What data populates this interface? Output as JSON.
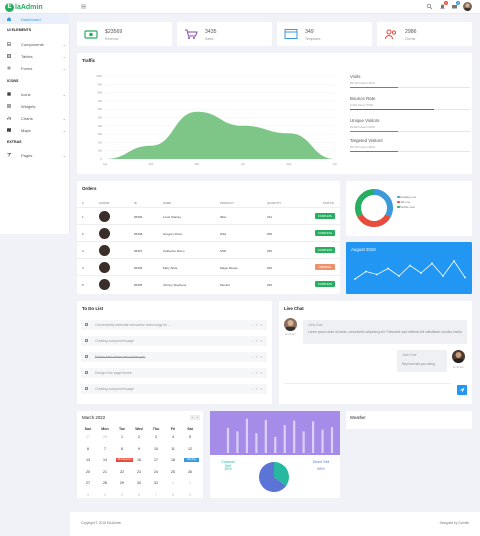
{
  "brand": {
    "icon_letter": "E",
    "name": "laAdmin",
    "color": "#27ae60"
  },
  "topbar": {
    "badges": [
      "4",
      "3",
      "5"
    ]
  },
  "sidebar": {
    "dashboard": "Dashboard",
    "ui_heading": "UI ELEMENTS",
    "components": "Components",
    "tables": "Tables",
    "forms": "Forms",
    "icons_heading": "ICONS",
    "icons": "Icons",
    "widgets": "Widgets",
    "charts": "Charts",
    "maps": "Maps",
    "extras_heading": "EXTRAS",
    "pages": "Pages"
  },
  "stats": [
    {
      "value": "$23569",
      "label": "Revenue",
      "color": "#27ae60",
      "icon": "money-icon"
    },
    {
      "value": "3435",
      "label": "Sales",
      "color": "#8e44ad",
      "icon": "cart-icon"
    },
    {
      "value": "349",
      "label": "Templates",
      "color": "#3b9ad9",
      "icon": "browser-icon"
    },
    {
      "value": "2986",
      "label": "Clients",
      "color": "#e74c3c",
      "icon": "users-icon"
    }
  ],
  "traffic": {
    "title": "Traffic",
    "chart_data": {
      "type": "area",
      "x": [
        "Jan",
        "Feb",
        "Mar",
        "Apr",
        "May",
        "Jun"
      ],
      "values": [
        0,
        160,
        570,
        400,
        310,
        0
      ],
      "yticks": [
        "1000",
        "900",
        "800",
        "700",
        "600",
        "500",
        "400",
        "300",
        "200",
        "100",
        "0"
      ],
      "ylim": [
        0,
        1000
      ],
      "color": "#7dc687"
    },
    "stats": [
      {
        "title": "Visits",
        "sub": "29,703 Users (40%)",
        "pct": 40,
        "color": "#27ae60"
      },
      {
        "title": "Bounce Rate",
        "sub": "3,223 Users (70%)",
        "pct": 70,
        "color": "#8e44ad"
      },
      {
        "title": "Unique Visitors",
        "sub": "29,903 Users (40%)",
        "pct": 40,
        "color": "#3b9ad9"
      },
      {
        "title": "Targeted Visitors",
        "sub": "29,703 Users (40%)",
        "pct": 40,
        "color": "#e74c3c"
      }
    ]
  },
  "orders": {
    "title": "Orders",
    "headers": [
      "#",
      "AVATAR",
      "ID",
      "NAME",
      "PRODUCT",
      "QUANTITY",
      "STATUS"
    ],
    "rows": [
      {
        "n": "1",
        "id": "#5469",
        "name": "Louis Stanley",
        "product": "iMax",
        "qty": "231",
        "status": "COMPLETE",
        "color": "#27ae60"
      },
      {
        "n": "2",
        "id": "#5468",
        "name": "Gregory Dixon",
        "product": "iPad",
        "qty": "250",
        "status": "COMPLETE",
        "color": "#27ae60"
      },
      {
        "n": "3",
        "id": "#5467",
        "name": "Catherine Dixon",
        "product": "SSD",
        "qty": "250",
        "status": "COMPLETE",
        "color": "#27ae60"
      },
      {
        "n": "4",
        "id": "#5466",
        "name": "Mary Silva",
        "product": "Magic Mouse",
        "qty": "250",
        "status": "PENDING",
        "color": "#f0916e"
      },
      {
        "n": "5",
        "id": "#5465",
        "name": "Johnny Stephens",
        "product": "Monitor",
        "qty": "250",
        "status": "COMPLETE",
        "color": "#27ae60"
      }
    ]
  },
  "donut": {
    "chart_data": {
      "type": "pie",
      "labels": [
        "Heading one",
        "Tab one",
        "Mobile view"
      ],
      "values": [
        33,
        34,
        33
      ],
      "colors": [
        "#3b9ad9",
        "#e74c3c",
        "#27ae60"
      ]
    }
  },
  "august": {
    "title": "August 2018",
    "chart_data": {
      "type": "line",
      "values": [
        30,
        55,
        45,
        65,
        40,
        75,
        50,
        82,
        40,
        90,
        35
      ],
      "ylim": [
        0,
        100
      ]
    }
  },
  "todo": {
    "title": "To Do List",
    "items": [
      "Conveniently fabricate interactive technology for ...",
      "Creating component page",
      "Follow back those who follow you",
      "Design One page theme",
      "Creating component page"
    ],
    "actions": "✓ ✎ ✕"
  },
  "chat": {
    "title": "Live Chat",
    "msg1": {
      "name": "John Doe",
      "text": "Lorem ipsum dolor sit amet, consectetur adipiscing elit. Parturient sunt eleifend tell sdfsdfwwe conubia nostra",
      "time": "11:11 am"
    },
    "msg2": {
      "name": "John Doe",
      "text": "Hey how are you doing.",
      "time": "11:11 am"
    }
  },
  "calendar": {
    "title": "March 2022",
    "days": [
      "Sun",
      "Mon",
      "Tue",
      "Wed",
      "Thu",
      "Fri",
      "Sat"
    ],
    "weeks": [
      [
        "27",
        "28",
        "1",
        "2",
        "3",
        "4",
        "5"
      ],
      [
        "6",
        "7",
        "8",
        "9",
        "10",
        "11",
        "12"
      ],
      [
        "13",
        "14",
        "15",
        "16",
        "17",
        "18",
        "19"
      ],
      [
        "20",
        "21",
        "22",
        "23",
        "24",
        "25",
        "26"
      ],
      [
        "27",
        "28",
        "29",
        "30",
        "31",
        "1",
        "2"
      ],
      [
        "3",
        "4",
        "5",
        "6",
        "7",
        "8",
        "9"
      ]
    ],
    "events": [
      "All Day Event",
      "Meeting"
    ]
  },
  "bars": {
    "chart_data": {
      "type": "bar",
      "values": [
        70,
        60,
        95,
        55,
        92,
        45,
        78,
        90,
        60,
        88,
        65,
        72
      ],
      "color": "#9b7fde"
    }
  },
  "sell": {
    "channel_label": "Channel Sell",
    "channel_value": "35%",
    "direct_label": "Direct Sell",
    "direct_value": "65%",
    "chart_data": {
      "type": "pie",
      "labels": [
        "Channel Sell",
        "Direct Sell"
      ],
      "values": [
        35,
        65
      ],
      "colors": [
        "#27b8a0",
        "#5b74d6"
      ]
    }
  },
  "weather": {
    "title": "Weather"
  },
  "footer": {
    "left": "Copyright © 2018 Ela Admin",
    "right": "Designed by Colorlib"
  }
}
